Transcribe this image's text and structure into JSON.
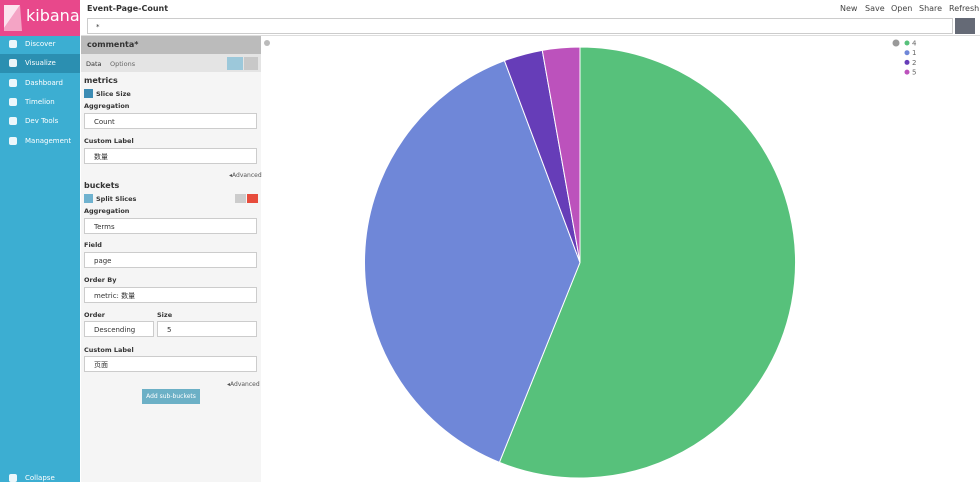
{
  "app": {
    "logo": "kibana",
    "nav": [
      "Discover",
      "Visualize",
      "Dashboard",
      "Timelion",
      "Dev Tools",
      "Management"
    ],
    "collapse": "Collapse"
  },
  "toolbar": {
    "title": "Event-Page-Count",
    "menu": [
      "New",
      "Save",
      "Open",
      "Share",
      "Refresh"
    ],
    "query": "*"
  },
  "editor": {
    "name": "commenta*",
    "tabs": [
      "Data",
      "Options"
    ],
    "metrics": {
      "heading": "metrics",
      "agg_title": "Slice Size",
      "aggregation_label": "Aggregation",
      "aggregation": "Count",
      "custom_label_label": "Custom Label",
      "custom_label": "数量",
      "advanced": "Advanced"
    },
    "buckets": {
      "heading": "buckets",
      "agg_title": "Split Slices",
      "aggregation_label": "Aggregation",
      "aggregation": "Terms",
      "field_label": "Field",
      "field": "page",
      "order_by_label": "Order By",
      "order_by": "metric: 数量",
      "order_label": "Order",
      "order": "Descending",
      "size_label": "Size",
      "size": 5,
      "custom_label_label": "Custom Label",
      "custom_label": "页面",
      "advanced": "Advanced",
      "add_sub": "Add sub-buckets"
    }
  },
  "chart_data": {
    "type": "pie",
    "categories": [
      "4",
      "1",
      "2",
      "5"
    ],
    "values": [
      56.1,
      38.2,
      2.9,
      2.8
    ],
    "colors": [
      "#57c17b",
      "#6f87d8",
      "#663db8",
      "#bc52bc"
    ]
  }
}
